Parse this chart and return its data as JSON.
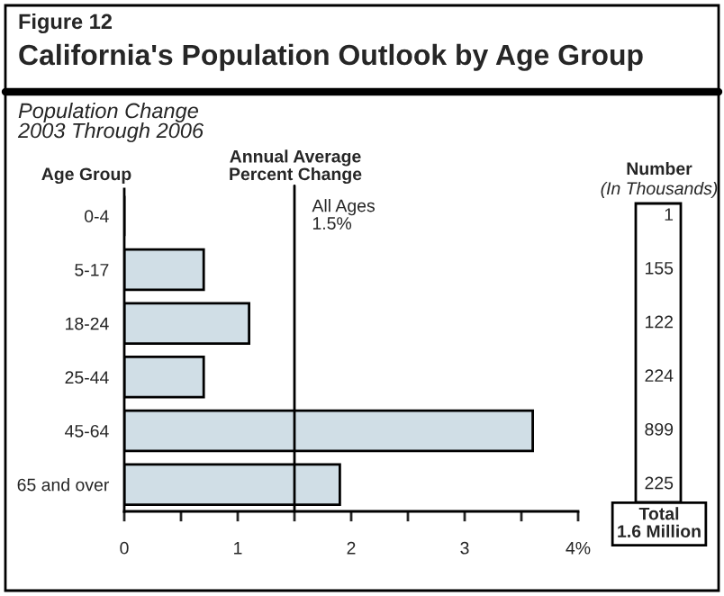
{
  "chart_data": {
    "type": "bar",
    "orientation": "horizontal",
    "title": "California's Population Outlook by Age Group",
    "subtitle": "Population Change\n2003 Through 2006",
    "xlabel": "Annual Average\nPercent Change",
    "ylabel": "Age Group",
    "categories": [
      "0-4",
      "5-17",
      "18-24",
      "25-44",
      "45-64",
      "65 and over"
    ],
    "values": [
      0,
      0.7,
      1.1,
      0.7,
      3.6,
      1.9
    ],
    "color": "#d0dee6",
    "xlim": [
      0,
      4
    ],
    "xticks": [
      0,
      {
        "value": 0.5,
        "label": null
      },
      1,
      {
        "value": 1.5,
        "label": null
      },
      2,
      {
        "value": 2.5,
        "label": null
      },
      3,
      {
        "value": 3.5,
        "label": null
      },
      {
        "value": 4,
        "label": "4%"
      }
    ],
    "ref_lines": [
      {
        "axis": "x",
        "value": 1.5,
        "label": "All Ages\n1.5%",
        "color": "#000000"
      }
    ],
    "grid": false,
    "annotations": [
      "Figure 12",
      "Number",
      "(In Thousands)",
      "1",
      "155",
      "122",
      "224",
      "899",
      "225",
      "Total\n1.6 Million"
    ]
  }
}
